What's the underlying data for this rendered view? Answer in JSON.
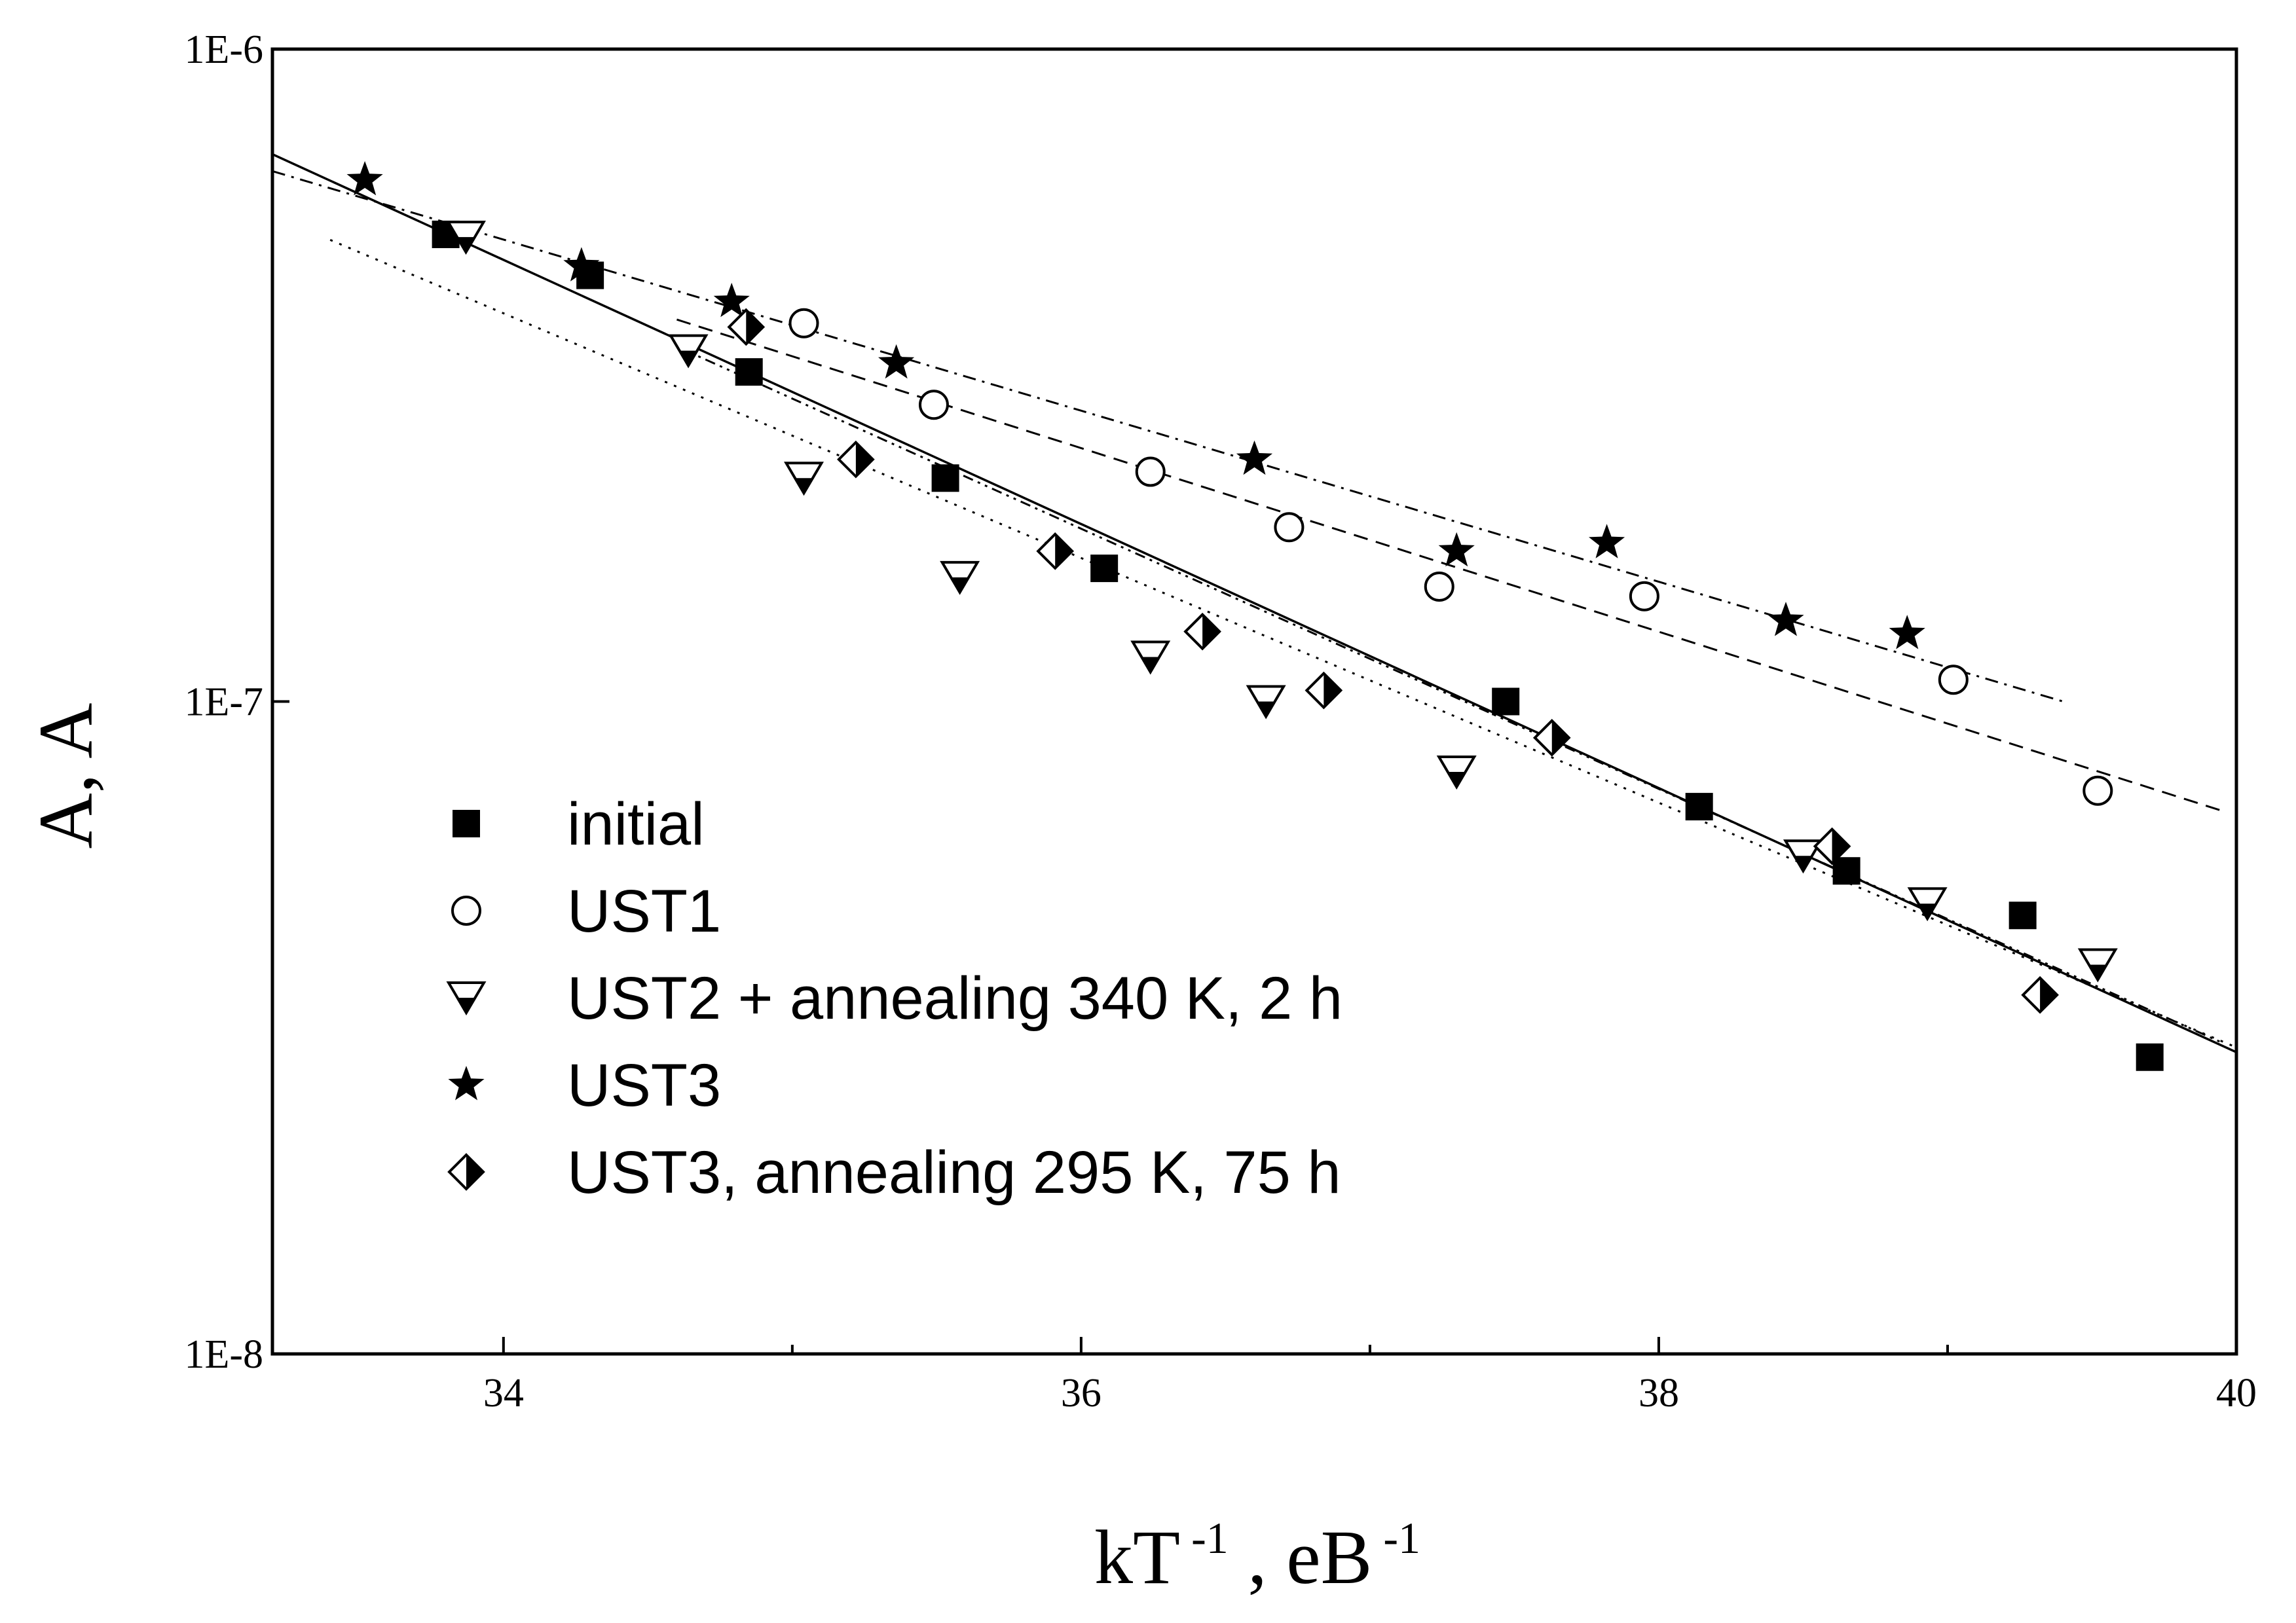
{
  "chart_data": {
    "type": "scatter",
    "title": "",
    "xlabel": {
      "base": "kT",
      "base_sup": "-1",
      "sep": ",",
      "unit": "eB",
      "unit_sup": "-1"
    },
    "ylabel": "A, A",
    "xlim": [
      33.2,
      40
    ],
    "ylim": [
      1e-08,
      1e-06
    ],
    "yscale": "log",
    "grid": false,
    "legend_position": "lower-left",
    "x_ticks_major": [
      34,
      36,
      38,
      40
    ],
    "x_ticks_minor": [
      35,
      37,
      39
    ],
    "x_tick_labels": [
      "34",
      "36",
      "38",
      "40"
    ],
    "y_ticks": [
      1e-08,
      1e-07,
      1e-06
    ],
    "y_tick_labels": [
      "1E-8",
      "1E-7",
      "1E-6"
    ],
    "series": [
      {
        "name": "initial",
        "marker": "square-filled",
        "points": [
          [
            33.8,
            5.2e-07
          ],
          [
            34.3,
            4.5e-07
          ],
          [
            34.85,
            3.2e-07
          ],
          [
            35.53,
            2.2e-07
          ],
          [
            36.08,
            1.6e-07
          ],
          [
            37.47,
            1e-07
          ],
          [
            38.14,
            6.9e-08
          ],
          [
            38.65,
            5.5e-08
          ],
          [
            39.26,
            4.7e-08
          ],
          [
            39.7,
            2.85e-08
          ]
        ],
        "fit": {
          "style": "solid",
          "x": [
            33.2,
            40
          ],
          "y": [
            6.9e-07,
            2.9e-08
          ]
        }
      },
      {
        "name": "UST1",
        "marker": "circle-open",
        "points": [
          [
            35.04,
            3.8e-07
          ],
          [
            35.49,
            2.85e-07
          ],
          [
            36.24,
            2.25e-07
          ],
          [
            36.72,
            1.85e-07
          ],
          [
            37.24,
            1.5e-07
          ],
          [
            37.95,
            1.45e-07
          ],
          [
            39.02,
            1.08e-07
          ],
          [
            39.52,
            7.3e-08
          ]
        ],
        "fit": {
          "style": "dashed",
          "x": [
            34.6,
            39.95
          ],
          "y": [
            3.85e-07,
            6.8e-08
          ]
        }
      },
      {
        "name": "UST2 + annealing 340 K, 2 h",
        "marker": "triangle-half",
        "points": [
          [
            33.87,
            5.15e-07
          ],
          [
            34.64,
            3.45e-07
          ],
          [
            35.04,
            2.2e-07
          ],
          [
            35.58,
            1.55e-07
          ],
          [
            36.24,
            1.17e-07
          ],
          [
            36.64,
            1e-07
          ],
          [
            37.3,
            7.8e-08
          ],
          [
            38.5,
            5.8e-08
          ],
          [
            38.93,
            4.9e-08
          ],
          [
            39.52,
            3.95e-08
          ]
        ],
        "fit": {
          "style": "dotted",
          "x": [
            33.4,
            40
          ],
          "y": [
            5.1e-07,
            2.95e-08
          ]
        }
      },
      {
        "name": "UST3",
        "marker": "star-filled",
        "points": [
          [
            33.52,
            6.3e-07
          ],
          [
            34.27,
            4.65e-07
          ],
          [
            34.79,
            4.1e-07
          ],
          [
            35.36,
            3.3e-07
          ],
          [
            36.6,
            2.35e-07
          ],
          [
            37.3,
            1.7e-07
          ],
          [
            37.82,
            1.75e-07
          ],
          [
            38.44,
            1.33e-07
          ],
          [
            38.86,
            1.27e-07
          ]
        ],
        "fit": {
          "style": "dashdot",
          "x": [
            33.2,
            39.4
          ],
          "y": [
            6.5e-07,
            1e-07
          ]
        }
      },
      {
        "name": "UST3, annealing 295 K, 75 h",
        "marker": "diamond-half",
        "points": [
          [
            34.84,
            3.75e-07
          ],
          [
            35.22,
            2.35e-07
          ],
          [
            35.91,
            1.7e-07
          ],
          [
            36.42,
            1.28e-07
          ],
          [
            36.84,
            1.04e-07
          ],
          [
            37.63,
            8.8e-08
          ],
          [
            38.6,
            6e-08
          ],
          [
            39.32,
            3.55e-08
          ]
        ],
        "fit": {
          "style": "dashdotdot",
          "x": [
            34.6,
            39.95
          ],
          "y": [
            3.5e-07,
            3e-08
          ]
        }
      }
    ]
  }
}
